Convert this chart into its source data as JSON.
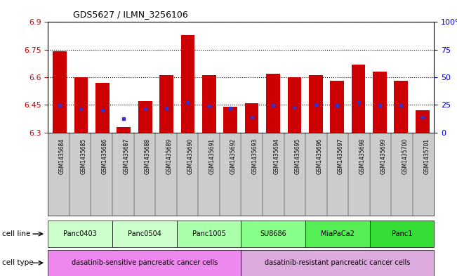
{
  "title": "GDS5627 / ILMN_3256106",
  "samples": [
    "GSM1435684",
    "GSM1435685",
    "GSM1435686",
    "GSM1435687",
    "GSM1435688",
    "GSM1435689",
    "GSM1435690",
    "GSM1435691",
    "GSM1435692",
    "GSM1435693",
    "GSM1435694",
    "GSM1435695",
    "GSM1435696",
    "GSM1435697",
    "GSM1435698",
    "GSM1435699",
    "GSM1435700",
    "GSM1435701"
  ],
  "bar_values": [
    6.74,
    6.6,
    6.57,
    6.33,
    6.47,
    6.61,
    6.83,
    6.61,
    6.44,
    6.46,
    6.62,
    6.6,
    6.61,
    6.58,
    6.67,
    6.63,
    6.58,
    6.42
  ],
  "percentile_values": [
    6.448,
    6.428,
    6.422,
    6.375,
    6.428,
    6.433,
    6.462,
    6.442,
    6.432,
    6.382,
    6.447,
    6.437,
    6.452,
    6.447,
    6.462,
    6.448,
    6.447,
    6.382
  ],
  "ymin": 6.3,
  "ymax": 6.9,
  "yticks": [
    6.3,
    6.45,
    6.6,
    6.75,
    6.9
  ],
  "right_yticks": [
    0,
    25,
    50,
    75,
    100
  ],
  "bar_color": "#cc0000",
  "marker_color": "#3333cc",
  "plot_bg_color": "#ffffff",
  "background_color": "#ffffff",
  "tick_area_bg": "#d8d8d8",
  "tick_label_color": "#cc0000",
  "right_tick_color": "#0000cc",
  "cell_line_groups": [
    {
      "name": "Panc0403",
      "start": 0,
      "end": 2,
      "color": "#ccffcc"
    },
    {
      "name": "Panc0504",
      "start": 3,
      "end": 5,
      "color": "#ccffcc"
    },
    {
      "name": "Panc1005",
      "start": 6,
      "end": 8,
      "color": "#aaffaa"
    },
    {
      "name": "SU8686",
      "start": 9,
      "end": 11,
      "color": "#88ff88"
    },
    {
      "name": "MiaPaCa2",
      "start": 12,
      "end": 14,
      "color": "#55ee55"
    },
    {
      "name": "Panc1",
      "start": 15,
      "end": 17,
      "color": "#33dd33"
    }
  ],
  "cell_type_groups": [
    {
      "name": "dasatinib-sensitive pancreatic cancer cells",
      "start": 0,
      "end": 8,
      "color": "#ee88ee"
    },
    {
      "name": "dasatinib-resistant pancreatic cancer cells",
      "start": 9,
      "end": 17,
      "color": "#ddaadd"
    }
  ]
}
